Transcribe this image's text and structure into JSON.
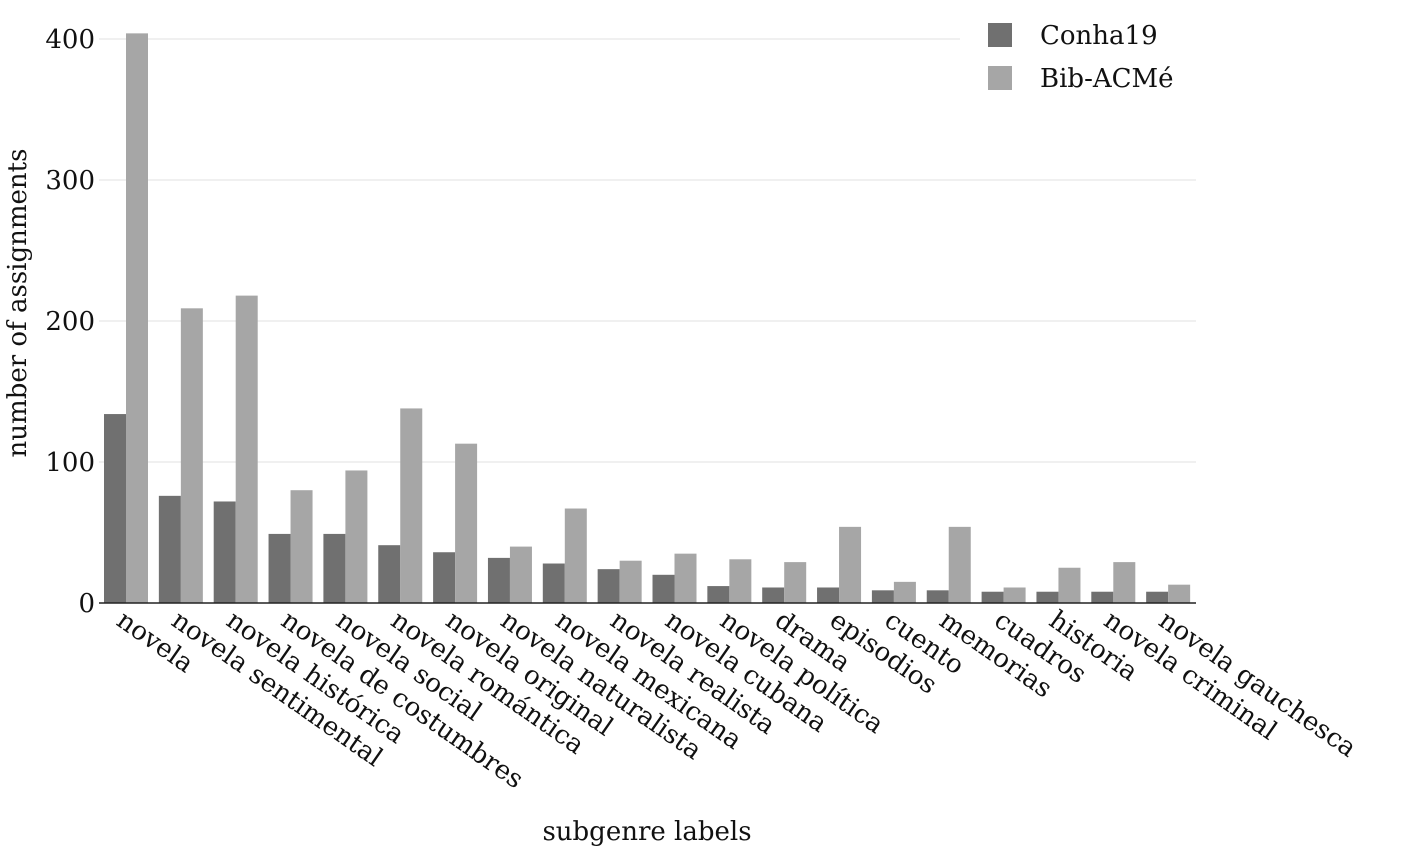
{
  "chart_data": {
    "type": "bar",
    "title": "",
    "xlabel": "subgenre labels",
    "ylabel": "number of assignments",
    "ylim": [
      0,
      400
    ],
    "yticks": [
      0,
      100,
      200,
      300,
      400
    ],
    "grid": "horizontal",
    "legend_position": "top-right",
    "categories": [
      "novela",
      "novela sentimental",
      "novela histórica",
      "novela de costumbres",
      "novela social",
      "novela romántica",
      "novela original",
      "novela naturalista",
      "novela mexicana",
      "novela realista",
      "novela cubana",
      "novela política",
      "drama",
      "episodios",
      "cuento",
      "memorias",
      "cuadros",
      "historia",
      "novela criminal",
      "novela gauchesca"
    ],
    "series": [
      {
        "name": "Conha19",
        "color": "#707070",
        "values": [
          134,
          76,
          72,
          49,
          49,
          41,
          36,
          32,
          28,
          24,
          20,
          12,
          11,
          11,
          9,
          9,
          8,
          8,
          8,
          8
        ]
      },
      {
        "name": "Bib-ACMé",
        "color": "#a6a6a6",
        "values": [
          404,
          209,
          218,
          80,
          94,
          138,
          113,
          40,
          67,
          30,
          35,
          31,
          29,
          54,
          15,
          54,
          11,
          25,
          29,
          13
        ]
      }
    ]
  }
}
